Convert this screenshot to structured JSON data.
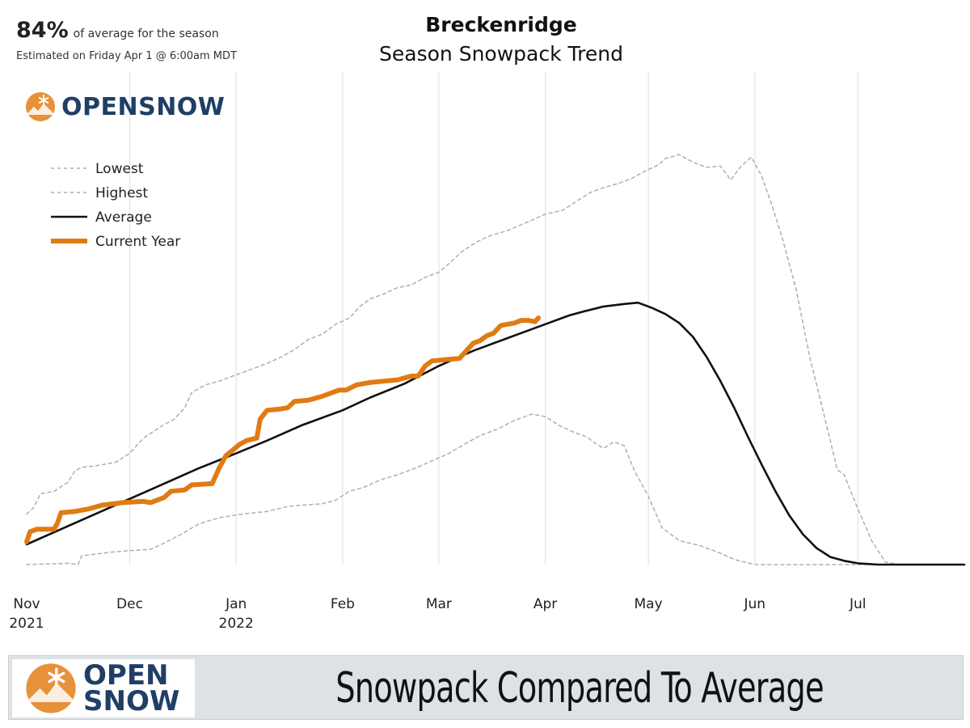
{
  "header": {
    "percent": "84%",
    "percent_caption": "of average for the season",
    "estimated": "Estimated on Friday Apr 1 @ 6:00am MDT",
    "logo_top": {
      "text_open": "OPEN",
      "text_snow": "SNOW"
    }
  },
  "banner": {
    "logo": {
      "line1": "OPEN",
      "line2": "SNOW"
    },
    "heading": "Snowpack Compared To Average"
  },
  "colors": {
    "current": "#e07b14",
    "average": "#111111",
    "extremes": "#9fb3c2",
    "grid": "#e3e6ea",
    "logo_blue": "#1f3f66",
    "logo_orange": "#e7913a",
    "banner_bg": "#dde2e6"
  },
  "chart_data": {
    "type": "line",
    "title": "Breckenridge",
    "subtitle": "Season Snowpack Trend",
    "xlabel": "",
    "ylabel": "",
    "x_unit": "days since Nov 1 2021",
    "x_ticks": [
      {
        "x": 0,
        "label": "Nov",
        "sub": "2021"
      },
      {
        "x": 30,
        "label": "Dec",
        "sub": ""
      },
      {
        "x": 61,
        "label": "Jan",
        "sub": "2022"
      },
      {
        "x": 92,
        "label": "Feb",
        "sub": ""
      },
      {
        "x": 120,
        "label": "Mar",
        "sub": ""
      },
      {
        "x": 151,
        "label": "Apr",
        "sub": ""
      },
      {
        "x": 181,
        "label": "May",
        "sub": ""
      },
      {
        "x": 212,
        "label": "Jun",
        "sub": ""
      },
      {
        "x": 242,
        "label": "Jul",
        "sub": ""
      }
    ],
    "xlim": [
      0,
      273
    ],
    "ylim": [
      0,
      19.5
    ],
    "grid": true,
    "legend_position": "top-left",
    "series": [
      {
        "name": "Lowest",
        "style": "dashed-thin",
        "points": [
          [
            0,
            0
          ],
          [
            12,
            0.05
          ],
          [
            15,
            0
          ],
          [
            16,
            0.35
          ],
          [
            25,
            0.5
          ],
          [
            30,
            0.55
          ],
          [
            36,
            0.6
          ],
          [
            40,
            0.85
          ],
          [
            45,
            1.2
          ],
          [
            50,
            1.6
          ],
          [
            56,
            1.85
          ],
          [
            63,
            2.0
          ],
          [
            70,
            2.1
          ],
          [
            76,
            2.3
          ],
          [
            80,
            2.35
          ],
          [
            86,
            2.4
          ],
          [
            90,
            2.55
          ],
          [
            94,
            2.9
          ],
          [
            98,
            3.05
          ],
          [
            103,
            3.35
          ],
          [
            108,
            3.55
          ],
          [
            113,
            3.8
          ],
          [
            118,
            4.1
          ],
          [
            123,
            4.4
          ],
          [
            128,
            4.8
          ],
          [
            132,
            5.1
          ],
          [
            137,
            5.35
          ],
          [
            142,
            5.7
          ],
          [
            147,
            5.95
          ],
          [
            151,
            5.85
          ],
          [
            155,
            5.5
          ],
          [
            159,
            5.25
          ],
          [
            163,
            5.05
          ],
          [
            166,
            4.75
          ],
          [
            168,
            4.6
          ],
          [
            171,
            4.85
          ],
          [
            174,
            4.7
          ],
          [
            177,
            3.7
          ],
          [
            181,
            2.7
          ],
          [
            185,
            1.45
          ],
          [
            190,
            0.95
          ],
          [
            196,
            0.75
          ],
          [
            202,
            0.45
          ],
          [
            206,
            0.2
          ],
          [
            212,
            0
          ],
          [
            242,
            0
          ],
          [
            273,
            0
          ]
        ]
      },
      {
        "name": "Highest",
        "style": "dashed-thin",
        "points": [
          [
            0,
            2.0
          ],
          [
            2,
            2.25
          ],
          [
            4,
            2.8
          ],
          [
            8,
            2.9
          ],
          [
            12,
            3.25
          ],
          [
            14,
            3.7
          ],
          [
            16,
            3.85
          ],
          [
            20,
            3.9
          ],
          [
            26,
            4.05
          ],
          [
            30,
            4.4
          ],
          [
            34,
            5.0
          ],
          [
            39,
            5.45
          ],
          [
            43,
            5.75
          ],
          [
            46,
            6.2
          ],
          [
            48,
            6.8
          ],
          [
            52,
            7.1
          ],
          [
            56,
            7.25
          ],
          [
            60,
            7.45
          ],
          [
            63,
            7.6
          ],
          [
            70,
            7.95
          ],
          [
            74,
            8.2
          ],
          [
            78,
            8.5
          ],
          [
            82,
            8.9
          ],
          [
            86,
            9.1
          ],
          [
            90,
            9.5
          ],
          [
            94,
            9.75
          ],
          [
            97,
            10.2
          ],
          [
            100,
            10.5
          ],
          [
            104,
            10.7
          ],
          [
            108,
            10.95
          ],
          [
            112,
            11.05
          ],
          [
            116,
            11.35
          ],
          [
            120,
            11.55
          ],
          [
            123,
            11.9
          ],
          [
            127,
            12.4
          ],
          [
            131,
            12.75
          ],
          [
            135,
            13.0
          ],
          [
            140,
            13.2
          ],
          [
            146,
            13.55
          ],
          [
            151,
            13.85
          ],
          [
            156,
            14.0
          ],
          [
            160,
            14.35
          ],
          [
            164,
            14.7
          ],
          [
            168,
            14.9
          ],
          [
            172,
            15.05
          ],
          [
            176,
            15.25
          ],
          [
            180,
            15.55
          ],
          [
            184,
            15.8
          ],
          [
            186,
            16.05
          ],
          [
            190,
            16.2
          ],
          [
            194,
            15.9
          ],
          [
            198,
            15.7
          ],
          [
            202,
            15.75
          ],
          [
            205,
            15.2
          ],
          [
            208,
            15.75
          ],
          [
            211,
            16.1
          ],
          [
            214,
            15.35
          ],
          [
            217,
            14.2
          ],
          [
            220,
            12.9
          ],
          [
            224,
            10.9
          ],
          [
            228,
            8.2
          ],
          [
            232,
            6.0
          ],
          [
            236,
            3.75
          ],
          [
            238,
            3.55
          ],
          [
            242,
            2.2
          ],
          [
            246,
            0.95
          ],
          [
            250,
            0.1
          ],
          [
            254,
            0
          ],
          [
            273,
            0
          ]
        ]
      },
      {
        "name": "Average",
        "style": "solid",
        "points": [
          [
            0,
            0.8
          ],
          [
            10,
            1.4
          ],
          [
            20,
            2.0
          ],
          [
            30,
            2.6
          ],
          [
            40,
            3.2
          ],
          [
            50,
            3.8
          ],
          [
            61,
            4.4
          ],
          [
            70,
            4.9
          ],
          [
            80,
            5.5
          ],
          [
            92,
            6.1
          ],
          [
            100,
            6.6
          ],
          [
            110,
            7.15
          ],
          [
            120,
            7.85
          ],
          [
            130,
            8.45
          ],
          [
            140,
            8.95
          ],
          [
            151,
            9.5
          ],
          [
            158,
            9.85
          ],
          [
            162,
            10.0
          ],
          [
            168,
            10.2
          ],
          [
            174,
            10.3
          ],
          [
            178,
            10.35
          ],
          [
            182,
            10.15
          ],
          [
            186,
            9.9
          ],
          [
            190,
            9.55
          ],
          [
            194,
            9.0
          ],
          [
            198,
            8.2
          ],
          [
            202,
            7.25
          ],
          [
            206,
            6.2
          ],
          [
            210,
            5.05
          ],
          [
            214,
            3.95
          ],
          [
            218,
            2.9
          ],
          [
            222,
            1.95
          ],
          [
            226,
            1.2
          ],
          [
            230,
            0.65
          ],
          [
            234,
            0.3
          ],
          [
            238,
            0.15
          ],
          [
            242,
            0.05
          ],
          [
            248,
            0
          ],
          [
            273,
            0
          ]
        ]
      },
      {
        "name": "Current Year",
        "style": "thick",
        "points": [
          [
            0,
            0.9
          ],
          [
            1,
            1.3
          ],
          [
            3,
            1.4
          ],
          [
            8,
            1.4
          ],
          [
            9,
            1.65
          ],
          [
            10,
            2.05
          ],
          [
            14,
            2.1
          ],
          [
            18,
            2.2
          ],
          [
            22,
            2.35
          ],
          [
            28,
            2.45
          ],
          [
            34,
            2.5
          ],
          [
            36,
            2.45
          ],
          [
            40,
            2.65
          ],
          [
            42,
            2.9
          ],
          [
            46,
            2.95
          ],
          [
            48,
            3.15
          ],
          [
            54,
            3.2
          ],
          [
            56,
            3.8
          ],
          [
            58,
            4.3
          ],
          [
            62,
            4.75
          ],
          [
            64,
            4.9
          ],
          [
            67,
            5.0
          ],
          [
            68,
            5.75
          ],
          [
            70,
            6.1
          ],
          [
            74,
            6.15
          ],
          [
            76,
            6.2
          ],
          [
            78,
            6.45
          ],
          [
            82,
            6.5
          ],
          [
            86,
            6.65
          ],
          [
            88,
            6.75
          ],
          [
            91,
            6.9
          ],
          [
            93,
            6.9
          ],
          [
            96,
            7.1
          ],
          [
            100,
            7.2
          ],
          [
            104,
            7.25
          ],
          [
            108,
            7.3
          ],
          [
            112,
            7.45
          ],
          [
            114,
            7.45
          ],
          [
            116,
            7.85
          ],
          [
            118,
            8.05
          ],
          [
            122,
            8.1
          ],
          [
            126,
            8.15
          ],
          [
            128,
            8.45
          ],
          [
            130,
            8.75
          ],
          [
            132,
            8.85
          ],
          [
            134,
            9.05
          ],
          [
            136,
            9.15
          ],
          [
            138,
            9.45
          ],
          [
            142,
            9.55
          ],
          [
            144,
            9.65
          ],
          [
            146,
            9.65
          ],
          [
            148,
            9.6
          ],
          [
            149,
            9.75
          ]
        ]
      }
    ]
  }
}
